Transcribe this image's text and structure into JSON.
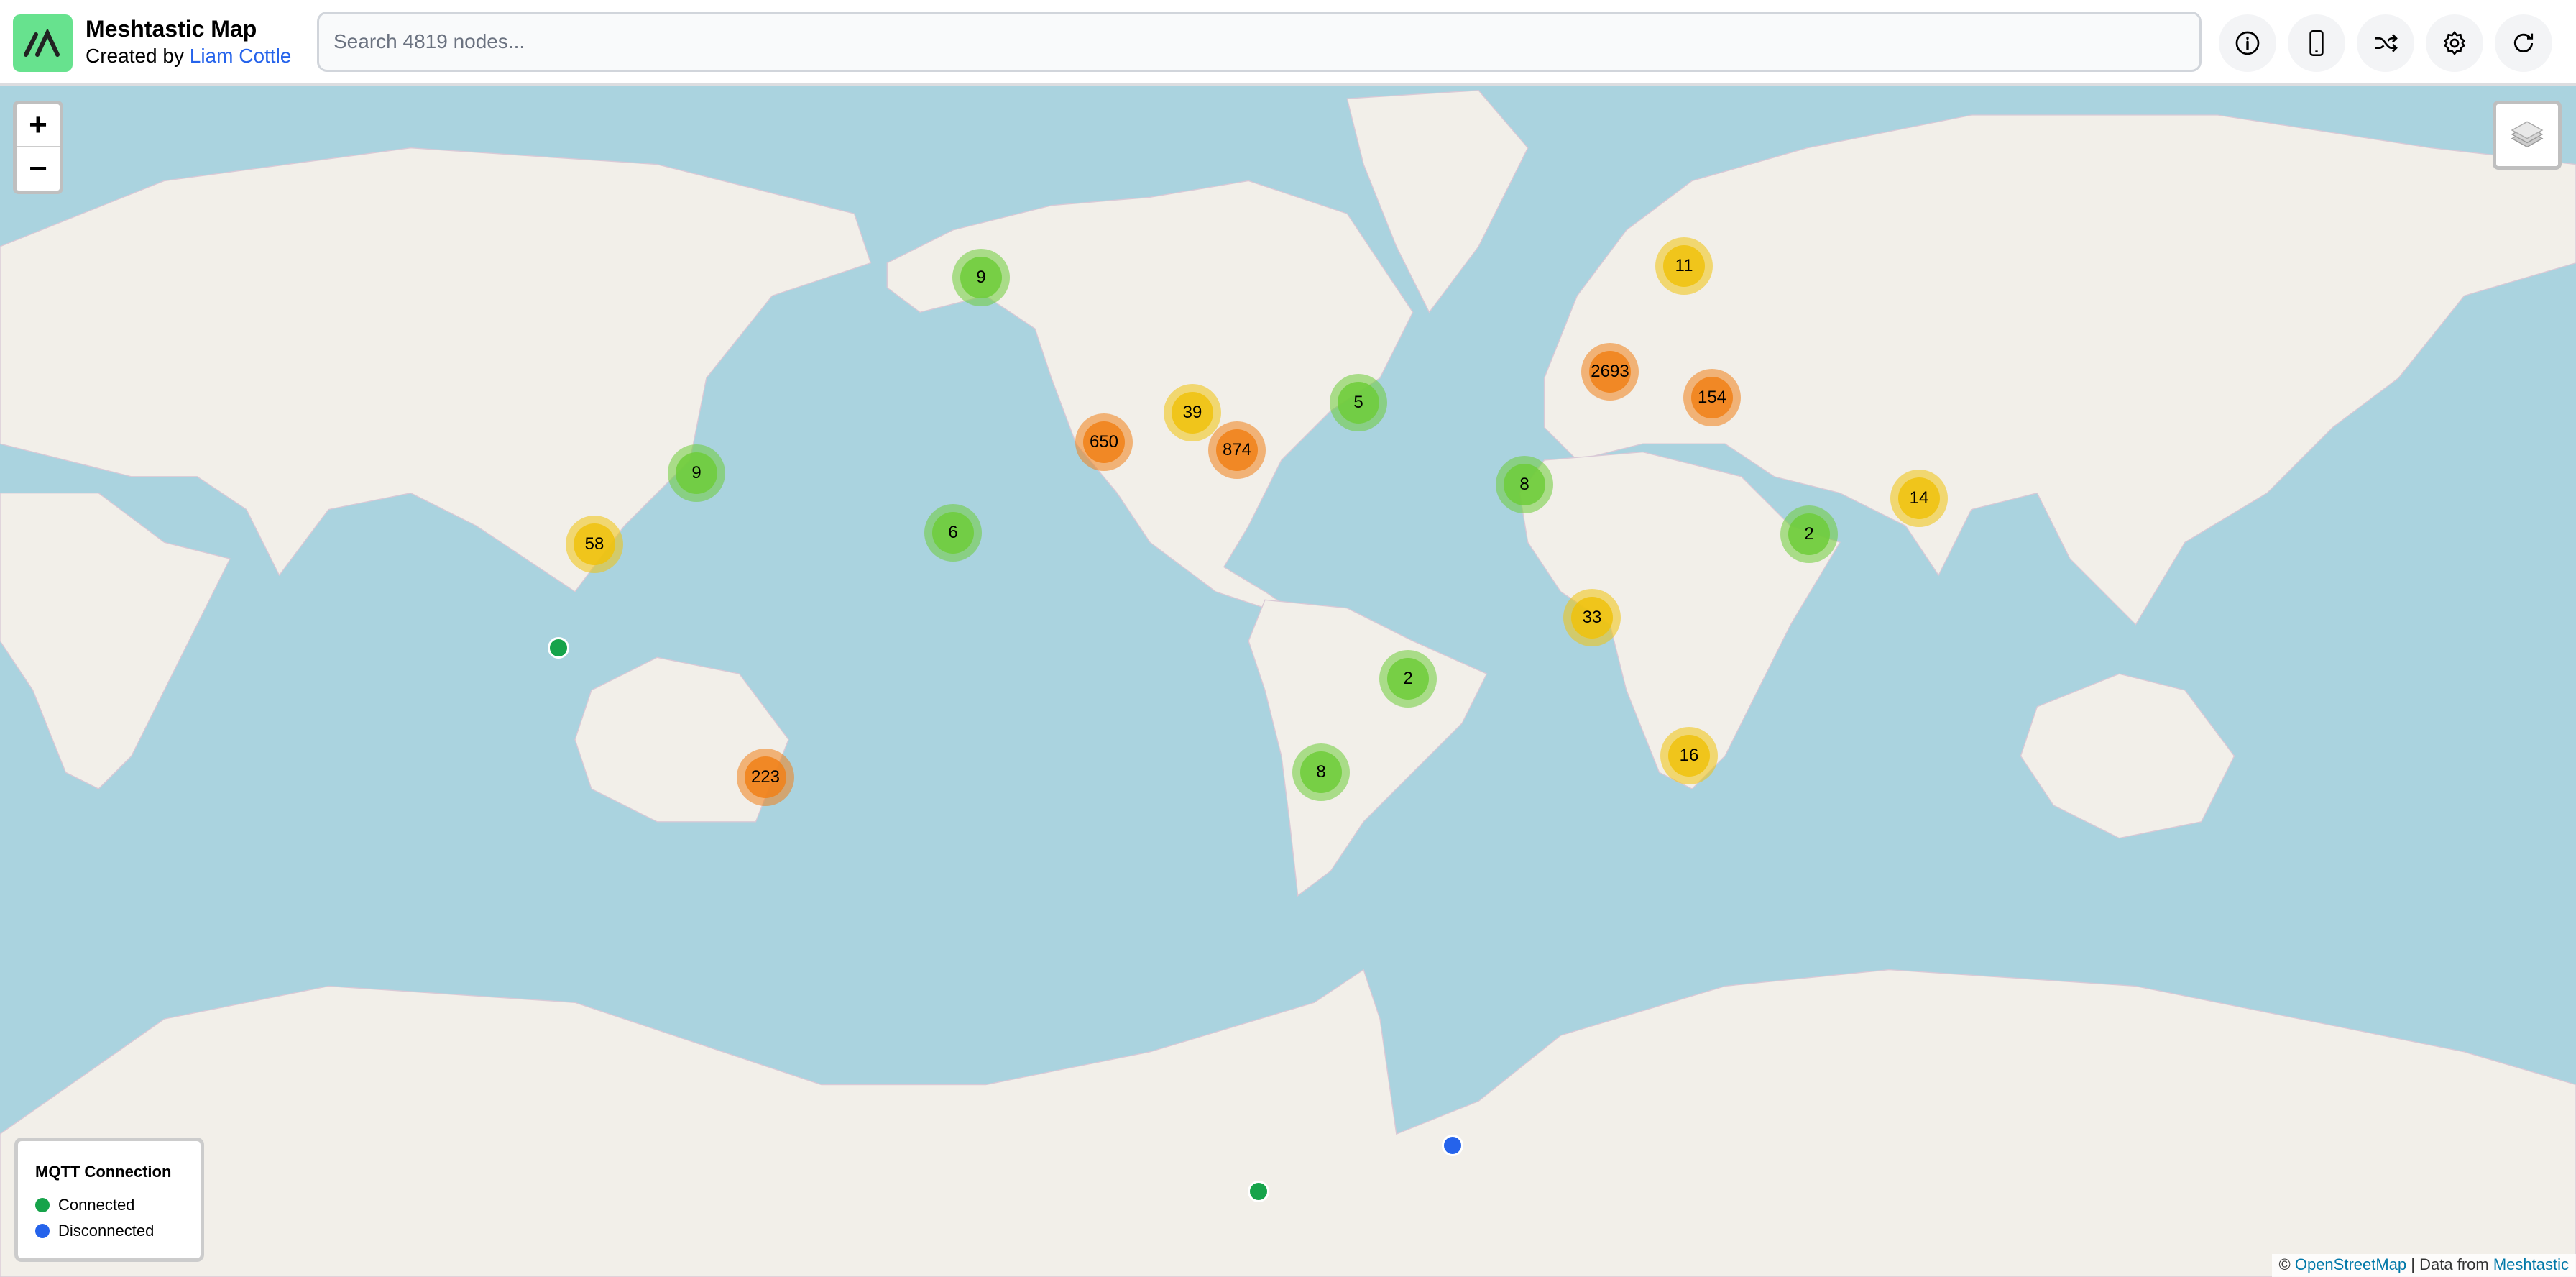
{
  "header": {
    "title": "Meshtastic Map",
    "created_by": "Created by",
    "author": "Liam Cottle",
    "search_placeholder": "Search 4819 nodes...",
    "buttons": [
      {
        "icon": "info-icon"
      },
      {
        "icon": "phone-icon"
      },
      {
        "icon": "shuffle-icon"
      },
      {
        "icon": "gear-icon"
      },
      {
        "icon": "refresh-icon"
      }
    ]
  },
  "map": {
    "zoom_in": "+",
    "zoom_out": "−",
    "ocean_color": "#aad3df",
    "land_color": "#f2efe9",
    "cluster_colors": {
      "small": "#6ecc39",
      "medium": "#f0c20c",
      "large": "#f18017"
    },
    "clusters": [
      {
        "count": "9",
        "size": "small"
      },
      {
        "count": "11",
        "size": "medium"
      },
      {
        "count": "2693",
        "size": "large"
      },
      {
        "count": "154",
        "size": "large"
      },
      {
        "count": "5",
        "size": "small"
      },
      {
        "count": "39",
        "size": "medium"
      },
      {
        "count": "650",
        "size": "large"
      },
      {
        "count": "874",
        "size": "large"
      },
      {
        "count": "9",
        "size": "small"
      },
      {
        "count": "8",
        "size": "small"
      },
      {
        "count": "14",
        "size": "medium"
      },
      {
        "count": "58",
        "size": "medium"
      },
      {
        "count": "6",
        "size": "small"
      },
      {
        "count": "2",
        "size": "small"
      },
      {
        "count": "33",
        "size": "medium"
      },
      {
        "count": "2",
        "size": "small"
      },
      {
        "count": "223",
        "size": "large"
      },
      {
        "count": "8",
        "size": "small"
      },
      {
        "count": "16",
        "size": "medium"
      }
    ],
    "nodes": [
      {
        "status": "connected"
      },
      {
        "status": "disconnected"
      },
      {
        "status": "connected"
      }
    ]
  },
  "legend": {
    "title": "MQTT Connection",
    "items": [
      {
        "label": "Connected",
        "color": "#16a34a"
      },
      {
        "label": "Disconnected",
        "color": "#2563eb"
      }
    ]
  },
  "attribution": {
    "copyright": "©",
    "osm": "OpenStreetMap",
    "separator": "|",
    "data_from": "Data from",
    "source": "Meshtastic"
  }
}
